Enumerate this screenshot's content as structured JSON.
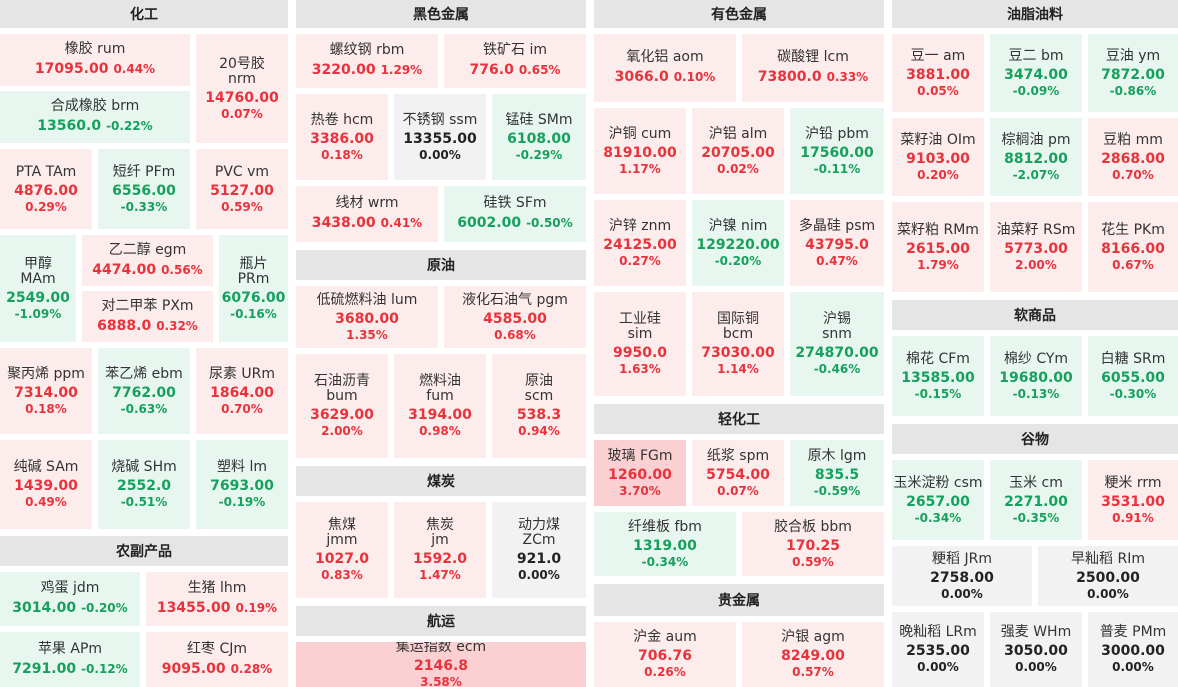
{
  "sections": {
    "chemical": "化工",
    "ferrous": "黑色金属",
    "nonferrous": "有色金属",
    "oils": "油脂油料",
    "agri": "农副产品",
    "crude": "原油",
    "coal": "煤炭",
    "shipping": "航运",
    "light": "轻化工",
    "precious": "贵金属",
    "soft": "软商品",
    "grain": "谷物"
  },
  "tiles": {
    "rum": {
      "name": "橡胶  rum",
      "price": "17095.00",
      "pct": "0.44%",
      "dir": "up"
    },
    "nrm": {
      "name": "20号胶",
      "name2": "nrm",
      "price": "14760.00",
      "pct": "0.07%",
      "dir": "up"
    },
    "brm": {
      "name": "合成橡胶  brm",
      "price": "13560.0",
      "pct": "-0.22%",
      "dir": "dn"
    },
    "tam": {
      "name": "PTA  TAm",
      "price": "4876.00",
      "pct": "0.29%",
      "dir": "up"
    },
    "pfm": {
      "name": "短纤  PFm",
      "price": "6556.00",
      "pct": "-0.33%",
      "dir": "dn"
    },
    "vm": {
      "name": "PVC  vm",
      "price": "5127.00",
      "pct": "0.59%",
      "dir": "up"
    },
    "mam": {
      "name": "甲醇",
      "name2": "MAm",
      "price": "2549.00",
      "pct": "-1.09%",
      "dir": "dn"
    },
    "egm": {
      "name": "乙二醇  egm",
      "price": "4474.00",
      "pct": "0.56%",
      "dir": "up"
    },
    "pxm": {
      "name": "对二甲苯  PXm",
      "price": "6888.0",
      "pct": "0.32%",
      "dir": "up"
    },
    "prm": {
      "name": "瓶片",
      "name2": "PRm",
      "price": "6076.00",
      "pct": "-0.16%",
      "dir": "dn"
    },
    "ppm": {
      "name": "聚丙烯  ppm",
      "price": "7314.00",
      "pct": "0.18%",
      "dir": "up"
    },
    "ebm": {
      "name": "苯乙烯  ebm",
      "price": "7762.00",
      "pct": "-0.63%",
      "dir": "dn"
    },
    "urm": {
      "name": "尿素  URm",
      "price": "1864.00",
      "pct": "0.70%",
      "dir": "up"
    },
    "sam": {
      "name": "纯碱  SAm",
      "price": "1439.00",
      "pct": "0.49%",
      "dir": "up"
    },
    "shm": {
      "name": "烧碱  SHm",
      "price": "2552.0",
      "pct": "-0.51%",
      "dir": "dn"
    },
    "lm": {
      "name": "塑料  lm",
      "price": "7693.00",
      "pct": "-0.19%",
      "dir": "dn"
    },
    "jdm": {
      "name": "鸡蛋  jdm",
      "price": "3014.00",
      "pct": "-0.20%",
      "dir": "dn"
    },
    "lhm": {
      "name": "生猪  lhm",
      "price": "13455.00",
      "pct": "0.19%",
      "dir": "up"
    },
    "apm": {
      "name": "苹果  APm",
      "price": "7291.00",
      "pct": "-0.12%",
      "dir": "dn"
    },
    "cjm": {
      "name": "红枣  CJm",
      "price": "9095.00",
      "pct": "0.28%",
      "dir": "up"
    },
    "rbm": {
      "name": "螺纹钢  rbm",
      "price": "3220.00",
      "pct": "1.29%",
      "dir": "up"
    },
    "im": {
      "name": "铁矿石  im",
      "price": "776.0",
      "pct": "0.65%",
      "dir": "up"
    },
    "hcm": {
      "name": "热卷  hcm",
      "price": "3386.00",
      "pct": "0.18%",
      "dir": "up"
    },
    "ssm": {
      "name": "不锈钢  ssm",
      "price": "13355.00",
      "pct": "0.00%",
      "dir": "fl"
    },
    "smm": {
      "name": "锰硅  SMm",
      "price": "6108.00",
      "pct": "-0.29%",
      "dir": "dn"
    },
    "wrm": {
      "name": "线材  wrm",
      "price": "3438.00",
      "pct": "0.41%",
      "dir": "up"
    },
    "sfm": {
      "name": "硅铁  SFm",
      "price": "6002.00",
      "pct": "-0.50%",
      "dir": "dn"
    },
    "lum": {
      "name": "低硫燃料油  lum",
      "price": "3680.00",
      "pct": "1.35%",
      "dir": "up"
    },
    "pgm": {
      "name": "液化石油气  pgm",
      "price": "4585.00",
      "pct": "0.68%",
      "dir": "up"
    },
    "bum": {
      "name": "石油沥青",
      "name2": "bum",
      "price": "3629.00",
      "pct": "2.00%",
      "dir": "up"
    },
    "fum": {
      "name": "燃料油",
      "name2": "fum",
      "price": "3194.00",
      "pct": "0.98%",
      "dir": "up"
    },
    "scm": {
      "name": "原油",
      "name2": "scm",
      "price": "538.3",
      "pct": "0.94%",
      "dir": "up"
    },
    "jmm": {
      "name": "焦煤",
      "name2": "jmm",
      "price": "1027.0",
      "pct": "0.83%",
      "dir": "up"
    },
    "jm": {
      "name": "焦炭",
      "name2": "jm",
      "price": "1592.0",
      "pct": "1.47%",
      "dir": "up"
    },
    "zcm": {
      "name": "动力煤",
      "name2": "ZCm",
      "price": "921.0",
      "pct": "0.00%",
      "dir": "fl"
    },
    "ecm": {
      "name": "集运指数  ecm",
      "price": "2146.8",
      "pct": "3.58%",
      "dir": "up2"
    },
    "aom": {
      "name": "氧化铝  aom",
      "price": "3066.0",
      "pct": "0.10%",
      "dir": "up"
    },
    "lcm": {
      "name": "碳酸锂  lcm",
      "price": "73800.0",
      "pct": "0.33%",
      "dir": "up"
    },
    "cum": {
      "name": "沪铜  cum",
      "price": "81910.00",
      "pct": "1.17%",
      "dir": "up"
    },
    "alm": {
      "name": "沪铝  alm",
      "price": "20705.00",
      "pct": "0.02%",
      "dir": "up"
    },
    "pbm": {
      "name": "沪铅  pbm",
      "price": "17560.00",
      "pct": "-0.11%",
      "dir": "dn"
    },
    "znm": {
      "name": "沪锌  znm",
      "price": "24125.00",
      "pct": "0.27%",
      "dir": "up"
    },
    "nim": {
      "name": "沪镍  nim",
      "price": "129220.00",
      "pct": "-0.20%",
      "dir": "dn"
    },
    "psm": {
      "name": "多晶硅  psm",
      "price": "43795.0",
      "pct": "0.47%",
      "dir": "up"
    },
    "sim": {
      "name": "工业硅",
      "name2": "sim",
      "price": "9950.0",
      "pct": "1.63%",
      "dir": "up"
    },
    "bcm": {
      "name": "国际铜",
      "name2": "bcm",
      "price": "73030.00",
      "pct": "1.14%",
      "dir": "up"
    },
    "snm": {
      "name": "沪锡",
      "name2": "snm",
      "price": "274870.00",
      "pct": "-0.46%",
      "dir": "dn"
    },
    "fgm": {
      "name": "玻璃  FGm",
      "price": "1260.00",
      "pct": "3.70%",
      "dir": "up2"
    },
    "spm": {
      "name": "纸浆  spm",
      "price": "5754.00",
      "pct": "0.07%",
      "dir": "up"
    },
    "lgm": {
      "name": "原木  lgm",
      "price": "835.5",
      "pct": "-0.59%",
      "dir": "dn"
    },
    "fbm": {
      "name": "纤维板  fbm",
      "price": "1319.00",
      "pct": "-0.34%",
      "dir": "dn"
    },
    "bbm": {
      "name": "胶合板  bbm",
      "price": "170.25",
      "pct": "0.59%",
      "dir": "up"
    },
    "aum": {
      "name": "沪金  aum",
      "price": "706.76",
      "pct": "0.26%",
      "dir": "up"
    },
    "agm": {
      "name": "沪银  agm",
      "price": "8249.00",
      "pct": "0.57%",
      "dir": "up"
    },
    "am": {
      "name": "豆一  am",
      "price": "3881.00",
      "pct": "0.05%",
      "dir": "up"
    },
    "bm": {
      "name": "豆二  bm",
      "price": "3474.00",
      "pct": "-0.09%",
      "dir": "dn"
    },
    "ym": {
      "name": "豆油  ym",
      "price": "7872.00",
      "pct": "-0.86%",
      "dir": "dn"
    },
    "olm": {
      "name": "菜籽油  OIm",
      "price": "9103.00",
      "pct": "0.20%",
      "dir": "up"
    },
    "pm": {
      "name": "棕榈油  pm",
      "price": "8812.00",
      "pct": "-2.07%",
      "dir": "dn"
    },
    "mm": {
      "name": "豆粕  mm",
      "price": "2868.00",
      "pct": "0.70%",
      "dir": "up"
    },
    "rmm": {
      "name": "菜籽粕  RMm",
      "price": "2615.00",
      "pct": "1.79%",
      "dir": "up"
    },
    "rsm": {
      "name": "油菜籽  RSm",
      "price": "5773.00",
      "pct": "2.00%",
      "dir": "up"
    },
    "pkm": {
      "name": "花生  PKm",
      "price": "8166.00",
      "pct": "0.67%",
      "dir": "up"
    },
    "cfm": {
      "name": "棉花  CFm",
      "price": "13585.00",
      "pct": "-0.15%",
      "dir": "dn"
    },
    "cym": {
      "name": "棉纱  CYm",
      "price": "19680.00",
      "pct": "-0.13%",
      "dir": "dn"
    },
    "srm": {
      "name": "白糖  SRm",
      "price": "6055.00",
      "pct": "-0.30%",
      "dir": "dn"
    },
    "csm": {
      "name": "玉米淀粉  csm",
      "price": "2657.00",
      "pct": "-0.34%",
      "dir": "dn"
    },
    "cm": {
      "name": "玉米  cm",
      "price": "2271.00",
      "pct": "-0.35%",
      "dir": "dn"
    },
    "rrm": {
      "name": "粳米  rrm",
      "price": "3531.00",
      "pct": "0.91%",
      "dir": "up"
    },
    "jrm": {
      "name": "粳稻  JRm",
      "price": "2758.00",
      "pct": "0.00%",
      "dir": "fl"
    },
    "rim": {
      "name": "早籼稻  RIm",
      "price": "2500.00",
      "pct": "0.00%",
      "dir": "fl"
    },
    "lrm": {
      "name": "晚籼稻  LRm",
      "price": "2535.00",
      "pct": "0.00%",
      "dir": "fl"
    },
    "whm": {
      "name": "强麦  WHm",
      "price": "3050.00",
      "pct": "0.00%",
      "dir": "fl"
    },
    "pmm": {
      "name": "普麦  PMm",
      "price": "3000.00",
      "pct": "0.00%",
      "dir": "fl"
    }
  }
}
